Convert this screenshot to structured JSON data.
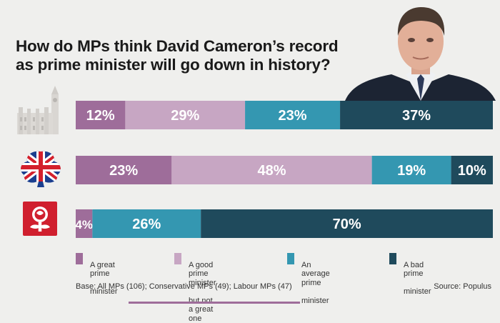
{
  "chart_data": {
    "type": "bar",
    "orientation": "horizontal",
    "stacked": true,
    "normalized": true,
    "title": "How do MPs think David Cameron’s record as prime minister will go down in history?",
    "title_lines": [
      "How do MPs think David Cameron’s record",
      "as prime minister will go down in history?"
    ],
    "categories": [
      "All MPs",
      "Conservative MPs",
      "Labour MPs"
    ],
    "row_icons": [
      "parliament-icon",
      "conservative-tree-icon",
      "labour-rose-icon"
    ],
    "series": [
      {
        "name": "A great prime minister",
        "legend_lines": [
          "A great prime",
          "minister"
        ],
        "color": "#9e6d9a",
        "values": [
          12,
          23,
          4
        ],
        "labels": [
          "12%",
          "23%",
          "4%"
        ]
      },
      {
        "name": "A good prime minister but not a great one",
        "legend_lines": [
          "A good prime minister",
          "but not a great one"
        ],
        "color": "#c7a6c3",
        "values": [
          29,
          48,
          0
        ],
        "labels": [
          "29%",
          "48%",
          ""
        ]
      },
      {
        "name": "An average prime minister",
        "legend_lines": [
          "An average prime",
          "minister"
        ],
        "color": "#3497b1",
        "values": [
          23,
          19,
          26
        ],
        "labels": [
          "23%",
          "19%",
          "26%"
        ]
      },
      {
        "name": "A bad prime minister",
        "legend_lines": [
          "A bad prime",
          "minister"
        ],
        "color": "#1f4a5c",
        "values": [
          37,
          10,
          70
        ],
        "labels": [
          "37%",
          "10%",
          "70%"
        ]
      }
    ],
    "base_note": "Base: All MPs (106); Conservative MPs (49); Labour MPs (47)",
    "source": "Source: Populus"
  }
}
